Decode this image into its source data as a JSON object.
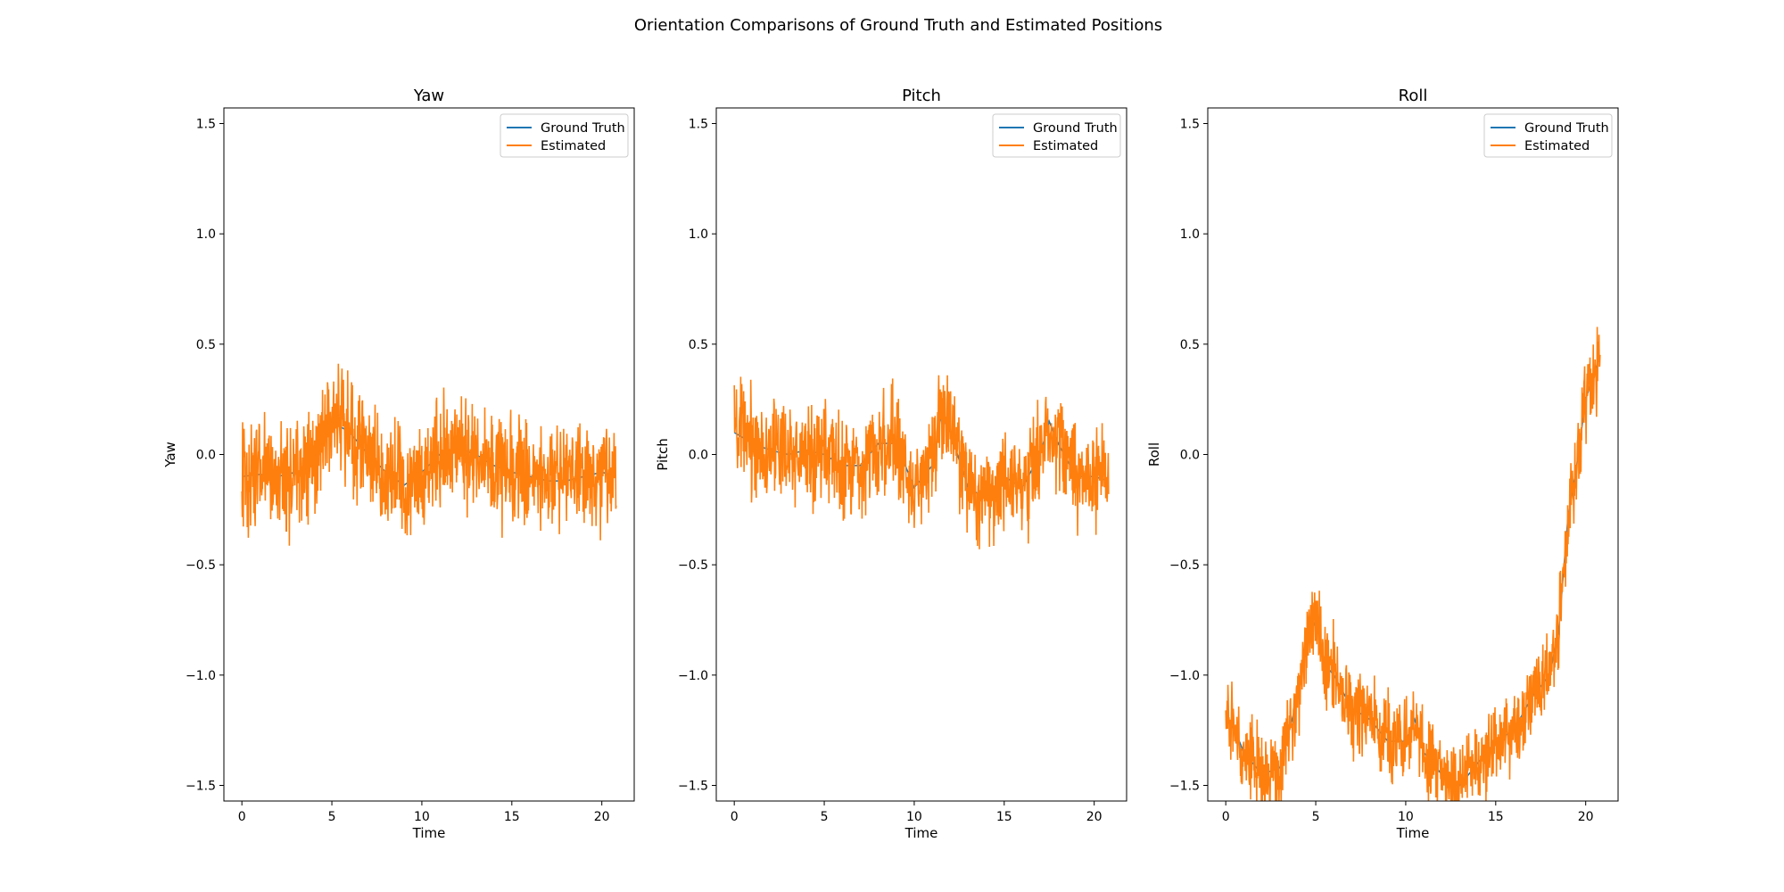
{
  "figure": {
    "title": "Orientation Comparisons of Ground Truth and Estimated Positions"
  },
  "colors": {
    "ground_truth": "#1f77b4",
    "estimated": "#ff7f0e",
    "axes": "#000000",
    "legend_border": "#cccccc"
  },
  "legend": {
    "placement": "upper-right",
    "items": [
      "Ground Truth",
      "Estimated"
    ]
  },
  "chart_data": [
    {
      "type": "line",
      "title": "Yaw",
      "xlabel": "Time",
      "ylabel": "Yaw",
      "xlim": [
        -1,
        21.8
      ],
      "ylim": [
        -1.5708,
        1.5708
      ],
      "xticks": [
        0,
        5,
        10,
        15,
        20
      ],
      "yticks": [
        -1.5,
        -1.0,
        -0.5,
        0.0,
        0.5,
        1.0,
        1.5
      ],
      "xtick_labels": [
        "0",
        "5",
        "10",
        "15",
        "20"
      ],
      "ytick_labels": [
        "−1.5",
        "−1.0",
        "−0.5",
        "0.0",
        "0.5",
        "1.0",
        "1.5"
      ],
      "grid": false,
      "series": [
        {
          "name": "Ground Truth",
          "x": [
            0,
            1,
            2,
            3,
            4,
            5,
            6,
            7,
            8,
            9,
            10,
            11,
            12,
            13,
            14,
            15,
            16,
            17,
            18,
            19,
            20,
            20.8
          ],
          "y": [
            -0.1,
            -0.09,
            -0.1,
            -0.08,
            -0.05,
            0.15,
            0.1,
            0.0,
            -0.08,
            -0.14,
            -0.08,
            0.0,
            0.03,
            0.0,
            -0.05,
            -0.08,
            -0.1,
            -0.12,
            -0.12,
            -0.1,
            -0.08,
            -0.1
          ]
        },
        {
          "name": "Estimated",
          "x": [
            0,
            1,
            2,
            3,
            4,
            5,
            6,
            7,
            8,
            9,
            10,
            11,
            12,
            13,
            14,
            15,
            16,
            17,
            18,
            19,
            20,
            20.8
          ],
          "y": [
            -0.1,
            -0.09,
            -0.1,
            -0.08,
            -0.05,
            0.15,
            0.1,
            0.0,
            -0.08,
            -0.14,
            -0.08,
            0.0,
            0.03,
            0.0,
            -0.05,
            -0.08,
            -0.1,
            -0.12,
            -0.12,
            -0.1,
            -0.08,
            -0.1
          ],
          "noise": 0.12
        }
      ]
    },
    {
      "type": "line",
      "title": "Pitch",
      "xlabel": "Time",
      "ylabel": "Pitch",
      "xlim": [
        -1,
        21.8
      ],
      "ylim": [
        -1.5708,
        1.5708
      ],
      "xticks": [
        0,
        5,
        10,
        15,
        20
      ],
      "yticks": [
        -1.5,
        -1.0,
        -0.5,
        0.0,
        0.5,
        1.0,
        1.5
      ],
      "xtick_labels": [
        "0",
        "5",
        "10",
        "15",
        "20"
      ],
      "ytick_labels": [
        "−1.5",
        "−1.0",
        "−0.5",
        "0.0",
        "0.5",
        "1.0",
        "1.5"
      ],
      "grid": false,
      "series": [
        {
          "name": "Ground Truth",
          "x": [
            0,
            1,
            2,
            3,
            4,
            5,
            6,
            7,
            8,
            9,
            10,
            11,
            11.5,
            12,
            13,
            14,
            15,
            16,
            17,
            17.5,
            18,
            19,
            20,
            20.8
          ],
          "y": [
            0.1,
            0.05,
            0.02,
            0.0,
            0.02,
            0.0,
            -0.05,
            -0.05,
            0.05,
            0.05,
            -0.15,
            -0.05,
            0.18,
            0.1,
            -0.15,
            -0.2,
            -0.1,
            -0.15,
            0.0,
            0.15,
            0.05,
            -0.1,
            -0.1,
            -0.12
          ]
        },
        {
          "name": "Estimated",
          "x": [
            0,
            1,
            2,
            3,
            4,
            5,
            6,
            7,
            8,
            9,
            10,
            11,
            11.5,
            12,
            13,
            14,
            15,
            16,
            17,
            17.5,
            18,
            19,
            20,
            20.8
          ],
          "y": [
            0.1,
            0.05,
            0.02,
            0.0,
            0.02,
            0.0,
            -0.05,
            -0.05,
            0.05,
            0.05,
            -0.15,
            -0.05,
            0.18,
            0.1,
            -0.15,
            -0.2,
            -0.1,
            -0.15,
            0.0,
            0.15,
            0.05,
            -0.1,
            -0.1,
            -0.12
          ],
          "noise": 0.11
        }
      ]
    },
    {
      "type": "line",
      "title": "Roll",
      "xlabel": "Time",
      "ylabel": "Roll",
      "xlim": [
        -1,
        21.8
      ],
      "ylim": [
        -1.5708,
        1.5708
      ],
      "xticks": [
        0,
        5,
        10,
        15,
        20
      ],
      "yticks": [
        -1.5,
        -1.0,
        -0.5,
        0.0,
        0.5,
        1.0,
        1.5
      ],
      "xtick_labels": [
        "0",
        "5",
        "10",
        "15",
        "20"
      ],
      "ytick_labels": [
        "−1.5",
        "−1.0",
        "−0.5",
        "0.0",
        "0.5",
        "1.0",
        "1.5"
      ],
      "grid": false,
      "series": [
        {
          "name": "Ground Truth",
          "x": [
            0,
            0.5,
            1,
            2,
            3,
            4,
            4.5,
            5,
            5.5,
            6,
            7,
            8,
            9,
            10,
            10.5,
            11,
            12,
            13,
            14,
            15,
            16,
            17,
            18,
            18.5,
            19,
            19.5,
            20,
            20.8
          ],
          "y": [
            -1.2,
            -1.25,
            -1.35,
            -1.45,
            -1.42,
            -1.1,
            -0.85,
            -0.75,
            -0.95,
            -1.0,
            -1.15,
            -1.2,
            -1.3,
            -1.3,
            -1.2,
            -1.35,
            -1.45,
            -1.5,
            -1.4,
            -1.3,
            -1.25,
            -1.1,
            -1.0,
            -0.8,
            -0.3,
            -0.05,
            0.25,
            0.45
          ]
        },
        {
          "name": "Estimated",
          "x": [
            0,
            0.5,
            1,
            2,
            3,
            4,
            4.5,
            5,
            5.5,
            6,
            7,
            8,
            9,
            10,
            10.5,
            11,
            12,
            13,
            14,
            15,
            16,
            17,
            18,
            18.5,
            19,
            19.5,
            20,
            20.8
          ],
          "y": [
            -1.2,
            -1.25,
            -1.35,
            -1.45,
            -1.42,
            -1.1,
            -0.85,
            -0.75,
            -0.95,
            -1.0,
            -1.15,
            -1.2,
            -1.3,
            -1.3,
            -1.2,
            -1.35,
            -1.45,
            -1.5,
            -1.4,
            -1.3,
            -1.25,
            -1.1,
            -1.0,
            -0.8,
            -0.3,
            -0.05,
            0.25,
            0.45
          ],
          "noise": 0.09
        }
      ]
    }
  ]
}
